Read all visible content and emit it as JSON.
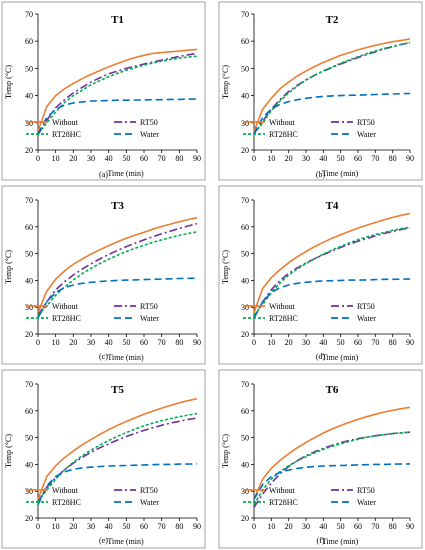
{
  "chart_data": [
    {
      "type": "line",
      "title": "T1",
      "sublabel": "(a)",
      "xlabel": "Time (min)",
      "ylabel": "Temp (°C)",
      "xlim": [
        0,
        90
      ],
      "ylim": [
        20,
        70
      ],
      "xticks": [
        0,
        10,
        20,
        30,
        40,
        50,
        60,
        70,
        80,
        90
      ],
      "yticks": [
        20,
        30,
        40,
        50,
        60,
        70
      ],
      "x": [
        0,
        5,
        10,
        15,
        20,
        25,
        30,
        35,
        40,
        45,
        50,
        55,
        60,
        65,
        70,
        75,
        80,
        85,
        90
      ],
      "series": [
        {
          "name": "Without",
          "values": [
            27,
            36,
            40,
            42.5,
            44.5,
            46.2,
            47.8,
            49.2,
            50.6,
            51.8,
            53,
            54,
            54.8,
            55.5,
            55.8,
            56.1,
            56.4,
            56.7,
            57
          ]
        },
        {
          "name": "RT50",
          "values": [
            25.5,
            31,
            35.5,
            38.5,
            41,
            43,
            45,
            46.5,
            48,
            49,
            50,
            50.8,
            51.6,
            52.3,
            53,
            53.7,
            54.4,
            55,
            55.5
          ]
        },
        {
          "name": "RT28HC",
          "values": [
            26,
            30,
            34,
            37.5,
            40,
            42,
            44,
            45.5,
            47,
            48.2,
            49.3,
            50.3,
            51.2,
            52,
            52.7,
            53.3,
            53.8,
            54.2,
            54.5
          ]
        },
        {
          "name": "Water",
          "values": [
            26,
            32,
            35,
            36.5,
            37.3,
            37.7,
            38,
            38.1,
            38.2,
            38.3,
            38.3,
            38.4,
            38.4,
            38.5,
            38.5,
            38.6,
            38.6,
            38.7,
            38.7
          ]
        }
      ]
    },
    {
      "type": "line",
      "title": "T2",
      "sublabel": "(b)",
      "xlabel": "Time (min)",
      "ylabel": "Temp (°C)",
      "xlim": [
        0,
        90
      ],
      "ylim": [
        20,
        70
      ],
      "xticks": [
        0,
        10,
        20,
        30,
        40,
        50,
        60,
        70,
        80,
        90
      ],
      "yticks": [
        20,
        30,
        40,
        50,
        60,
        70
      ],
      "x": [
        0,
        5,
        10,
        15,
        20,
        25,
        30,
        35,
        40,
        45,
        50,
        55,
        60,
        65,
        70,
        75,
        80,
        85,
        90
      ],
      "series": [
        {
          "name": "Without",
          "values": [
            27,
            35,
            39,
            42.5,
            45,
            47.2,
            49,
            50.7,
            52.2,
            53.5,
            54.8,
            55.8,
            56.8,
            57.7,
            58.5,
            59.2,
            59.8,
            60.3,
            60.8
          ]
        },
        {
          "name": "RT50",
          "values": [
            26,
            30.5,
            35,
            38.5,
            41.5,
            43.8,
            45.8,
            47.5,
            49,
            50.3,
            51.6,
            52.8,
            54,
            55.1,
            56.1,
            57.1,
            58,
            58.8,
            59.5
          ]
        },
        {
          "name": "RT28HC",
          "values": [
            26,
            30,
            34.5,
            38,
            41,
            43.5,
            45.7,
            47.5,
            49.1,
            50.5,
            51.9,
            53.1,
            54.3,
            55.4,
            56.4,
            57.3,
            58.1,
            58.8,
            59.5
          ]
        },
        {
          "name": "Water",
          "values": [
            26,
            32,
            35,
            36.8,
            37.8,
            38.5,
            39,
            39.4,
            39.7,
            39.9,
            40,
            40.1,
            40.2,
            40.3,
            40.4,
            40.5,
            40.6,
            40.7,
            40.8
          ]
        }
      ]
    },
    {
      "type": "line",
      "title": "T3",
      "sublabel": "(c)",
      "xlabel": "Time (min)",
      "ylabel": "Temp (°C)",
      "xlim": [
        0,
        90
      ],
      "ylim": [
        20,
        70
      ],
      "xticks": [
        0,
        10,
        20,
        30,
        40,
        50,
        60,
        70,
        80,
        90
      ],
      "yticks": [
        20,
        30,
        40,
        50,
        60,
        70
      ],
      "x": [
        0,
        5,
        10,
        15,
        20,
        25,
        30,
        35,
        40,
        45,
        50,
        55,
        60,
        65,
        70,
        75,
        80,
        85,
        90
      ],
      "series": [
        {
          "name": "Without",
          "values": [
            28,
            36,
            40.5,
            43.5,
            46,
            48,
            49.8,
            51.4,
            53,
            54.4,
            55.7,
            56.9,
            58,
            59.1,
            60.1,
            61,
            61.9,
            62.7,
            63.4
          ]
        },
        {
          "name": "RT50",
          "values": [
            27,
            32,
            36.5,
            39.5,
            42,
            44.2,
            46.2,
            48,
            49.7,
            51.2,
            52.6,
            53.9,
            55.1,
            56.3,
            57.4,
            58.4,
            59.4,
            60.3,
            61.2
          ]
        },
        {
          "name": "RT28HC",
          "values": [
            27,
            30.5,
            34.5,
            37.5,
            40.2,
            42.5,
            44.5,
            46.3,
            47.9,
            49.4,
            50.8,
            52,
            53.1,
            54.2,
            55.1,
            56,
            56.8,
            57.5,
            58.1
          ]
        },
        {
          "name": "Water",
          "values": [
            26,
            32,
            35.5,
            37.3,
            38.3,
            38.9,
            39.3,
            39.6,
            39.8,
            40,
            40.1,
            40.2,
            40.3,
            40.4,
            40.5,
            40.6,
            40.7,
            40.8,
            40.8
          ]
        }
      ]
    },
    {
      "type": "line",
      "title": "T4",
      "sublabel": "(d)",
      "xlabel": "Time (min)",
      "ylabel": "Temp (°C)",
      "xlim": [
        0,
        90
      ],
      "ylim": [
        20,
        70
      ],
      "xticks": [
        0,
        10,
        20,
        30,
        40,
        50,
        60,
        70,
        80,
        90
      ],
      "yticks": [
        20,
        30,
        40,
        50,
        60,
        70
      ],
      "x": [
        0,
        5,
        10,
        15,
        20,
        25,
        30,
        35,
        40,
        45,
        50,
        55,
        60,
        65,
        70,
        75,
        80,
        85,
        90
      ],
      "series": [
        {
          "name": "Without",
          "values": [
            28,
            37,
            41,
            44,
            46.6,
            48.8,
            50.8,
            52.6,
            54.2,
            55.7,
            57,
            58.3,
            59.5,
            60.6,
            61.6,
            62.6,
            63.5,
            64.3,
            65
          ]
        },
        {
          "name": "RT50",
          "values": [
            26,
            32,
            36.5,
            40,
            42.6,
            44.7,
            46.5,
            48.1,
            49.6,
            51,
            52.3,
            53.5,
            54.6,
            55.6,
            56.6,
            57.5,
            58.3,
            59,
            59.6
          ]
        },
        {
          "name": "RT28HC",
          "values": [
            27,
            31,
            35.5,
            39,
            42,
            44.3,
            46.3,
            48.1,
            49.8,
            51.3,
            52.7,
            54,
            55.2,
            56.2,
            57.1,
            57.9,
            58.7,
            59.3,
            59.9
          ]
        },
        {
          "name": "Water",
          "values": [
            26,
            32,
            35.5,
            37.3,
            38.3,
            38.9,
            39.3,
            39.6,
            39.8,
            39.9,
            40,
            40.1,
            40.1,
            40.2,
            40.3,
            40.4,
            40.4,
            40.5,
            40.5
          ]
        }
      ]
    },
    {
      "type": "line",
      "title": "T5",
      "sublabel": "(e)",
      "xlabel": "Time (min)",
      "ylabel": "Temp (°C)",
      "xlim": [
        0,
        90
      ],
      "ylim": [
        20,
        70
      ],
      "xticks": [
        0,
        10,
        20,
        30,
        40,
        50,
        60,
        70,
        80,
        90
      ],
      "yticks": [
        20,
        30,
        40,
        50,
        60,
        70
      ],
      "x": [
        0,
        5,
        10,
        15,
        20,
        25,
        30,
        35,
        40,
        45,
        50,
        55,
        60,
        65,
        70,
        75,
        80,
        85,
        90
      ],
      "series": [
        {
          "name": "Without",
          "values": [
            27,
            35.5,
            39.5,
            42.5,
            45,
            47.3,
            49.3,
            51.2,
            53,
            54.6,
            56,
            57.4,
            58.7,
            59.9,
            61,
            62,
            63,
            63.8,
            64.5
          ]
        },
        {
          "name": "RT50",
          "values": [
            26,
            31.5,
            35,
            38,
            40.5,
            42.6,
            44.5,
            46.2,
            47.7,
            49.1,
            50.4,
            51.6,
            52.7,
            53.7,
            54.6,
            55.4,
            56.1,
            56.8,
            57.3
          ]
        },
        {
          "name": "RT28HC",
          "values": [
            26,
            30.5,
            34.5,
            38,
            40.8,
            43.2,
            45.3,
            47.2,
            48.9,
            50.5,
            51.9,
            53.2,
            54.4,
            55.4,
            56.3,
            57.1,
            57.8,
            58.4,
            58.9
          ]
        },
        {
          "name": "Water",
          "values": [
            25,
            32,
            35.5,
            37.2,
            38.2,
            38.7,
            39,
            39.2,
            39.4,
            39.5,
            39.6,
            39.7,
            39.8,
            39.9,
            40,
            40,
            40.1,
            40.1,
            40.2
          ]
        }
      ]
    },
    {
      "type": "line",
      "title": "T6",
      "sublabel": "(f)",
      "xlabel": "Time (min)",
      "ylabel": "Temp (°C)",
      "xlim": [
        0,
        90
      ],
      "ylim": [
        20,
        70
      ],
      "xticks": [
        0,
        10,
        20,
        30,
        40,
        50,
        60,
        70,
        80,
        90
      ],
      "yticks": [
        20,
        30,
        40,
        50,
        60,
        70
      ],
      "x": [
        0,
        5,
        10,
        15,
        20,
        25,
        30,
        35,
        40,
        45,
        50,
        55,
        60,
        65,
        70,
        75,
        80,
        85,
        90
      ],
      "series": [
        {
          "name": "Without",
          "values": [
            27,
            34.5,
            38.5,
            41.5,
            44,
            46.2,
            48.2,
            50,
            51.7,
            53.2,
            54.5,
            55.7,
            56.8,
            57.8,
            58.7,
            59.5,
            60.2,
            60.8,
            61.3
          ]
        },
        {
          "name": "RT50",
          "values": [
            24,
            29,
            33,
            36.5,
            39.2,
            41.4,
            43.2,
            44.7,
            46,
            47.1,
            48.1,
            48.9,
            49.6,
            50.2,
            50.7,
            51.1,
            51.5,
            51.8,
            52
          ]
        },
        {
          "name": "RT28HC",
          "values": [
            25,
            30.5,
            34.5,
            37.3,
            39.5,
            41.3,
            42.9,
            44.3,
            45.6,
            46.7,
            47.7,
            48.6,
            49.4,
            50.1,
            50.6,
            51.1,
            51.5,
            51.8,
            52
          ]
        },
        {
          "name": "Water",
          "values": [
            27,
            32.5,
            35.5,
            37,
            37.9,
            38.5,
            38.9,
            39.2,
            39.4,
            39.5,
            39.6,
            39.7,
            39.8,
            39.9,
            40,
            40,
            40.1,
            40.1,
            40.2
          ]
        }
      ]
    }
  ],
  "series_styles": {
    "Without": {
      "color": "#ED7D31",
      "dash": ""
    },
    "RT50": {
      "color": "#7030A0",
      "dash": "8,3,2,3"
    },
    "RT28HC": {
      "color": "#00B050",
      "dash": "3,2"
    },
    "Water": {
      "color": "#0070C0",
      "dash": "7,4"
    }
  }
}
